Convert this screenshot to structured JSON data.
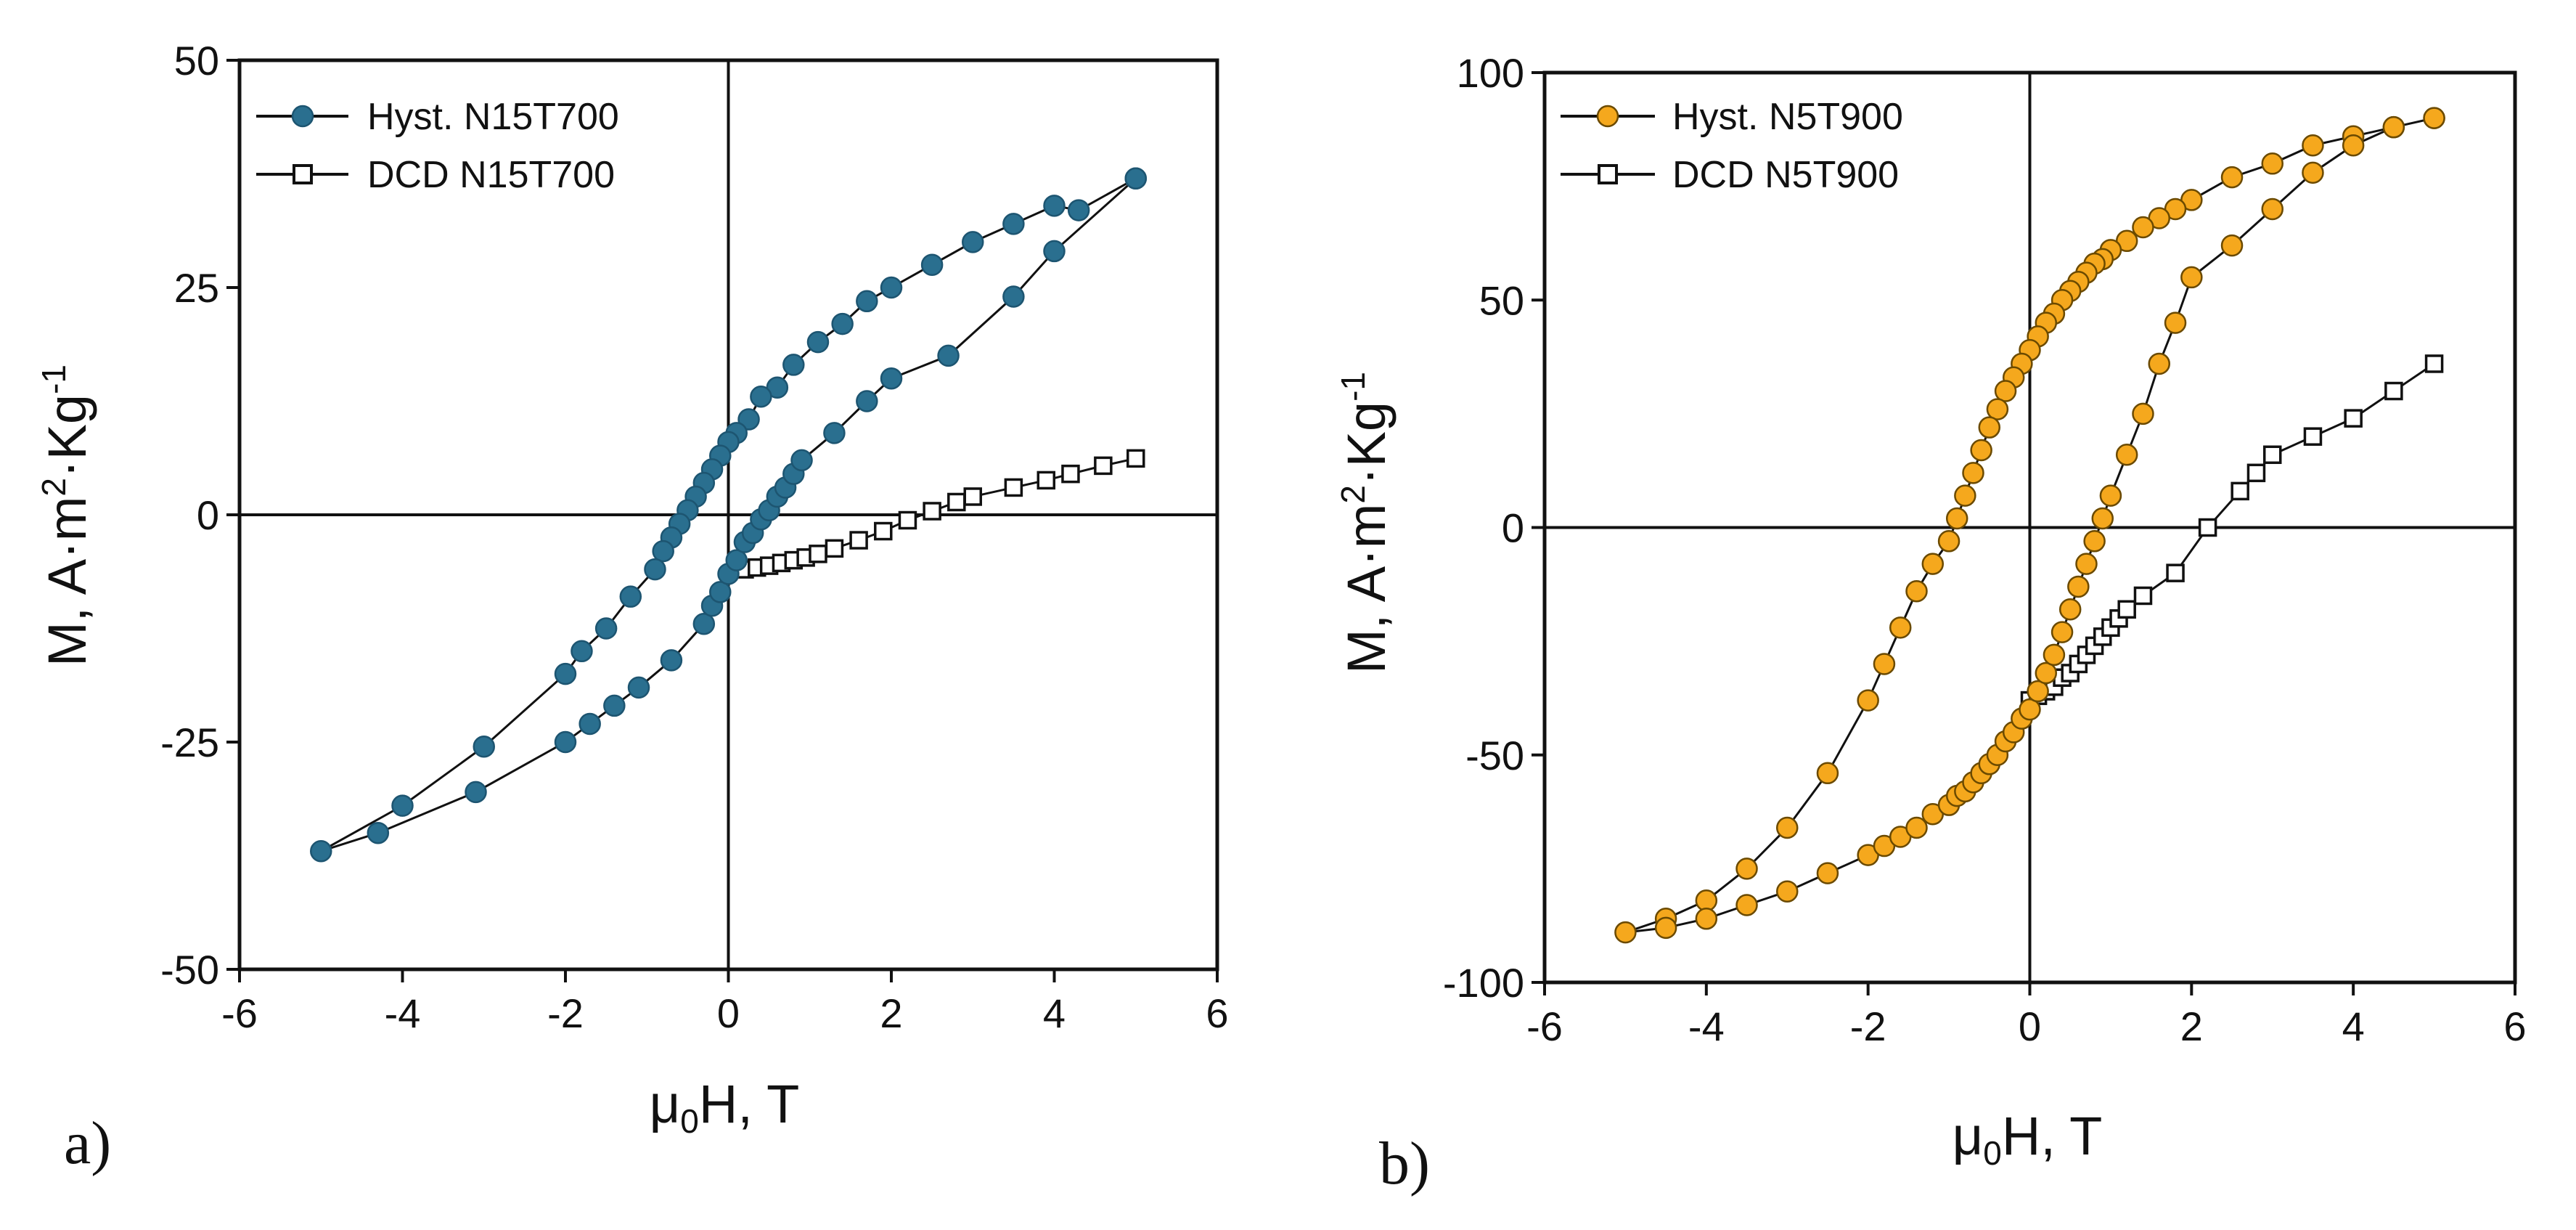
{
  "chart_data": [
    {
      "type": "line",
      "panel_label": "a)",
      "xlabel": {
        "main": "μ",
        "sub": "0",
        "rest": "H, T"
      },
      "ylabel": {
        "text": "M, A·m",
        "sup1": "2",
        "mid": "·Kg",
        "sup2": "-1"
      },
      "xlim": [
        -6,
        6
      ],
      "ylim": [
        -50,
        50
      ],
      "xticks": [
        -6,
        -4,
        -2,
        0,
        2,
        4,
        6
      ],
      "yticks": [
        -50,
        -25,
        0,
        25,
        50
      ],
      "legend": {
        "position": "top-left"
      },
      "colors": {
        "hyst": "#2a6f8f",
        "hyst_edge": "#1d5571",
        "line": "#111111"
      },
      "series": [
        {
          "name": "Hyst. N15T700",
          "marker": "filled-circle",
          "x": [
            5,
            4.3,
            4.0,
            3.5,
            3.0,
            2.5,
            2.0,
            1.7,
            1.4,
            1.1,
            0.8,
            0.6,
            0.4,
            0.25,
            0.1,
            0.0,
            -0.1,
            -0.2,
            -0.3,
            -0.4,
            -0.5,
            -0.6,
            -0.7,
            -0.8,
            -0.9,
            -1.2,
            -1.5,
            -1.8,
            -2.0,
            -3.0,
            -4.0,
            -5.0,
            -4.3,
            -3.1,
            -2.0,
            -1.7,
            -1.4,
            -1.1,
            -0.7,
            -0.3,
            -0.2,
            -0.1,
            0.0,
            0.1,
            0.2,
            0.3,
            0.4,
            0.5,
            0.6,
            0.7,
            0.8,
            0.9,
            1.3,
            1.7,
            2.0,
            2.7,
            3.5,
            4.0,
            5.0
          ],
          "y": [
            37,
            33.5,
            34,
            32,
            30,
            27.5,
            25,
            23.5,
            21,
            19,
            16.5,
            14,
            13,
            10.5,
            9,
            8,
            6.5,
            5,
            3.5,
            2,
            0.5,
            -1,
            -2.5,
            -4,
            -6,
            -9,
            -12.5,
            -15,
            -17.5,
            -25.5,
            -32,
            -37,
            -35,
            -30.5,
            -25,
            -23,
            -21,
            -19,
            -16,
            -12,
            -10,
            -8.5,
            -6.5,
            -5,
            -3,
            -2,
            -0.5,
            0.5,
            2,
            3,
            4.5,
            6,
            9,
            12.5,
            15,
            17.5,
            24,
            29,
            37
          ]
        },
        {
          "name": "DCD N15T700",
          "marker": "open-square",
          "x": [
            0.2,
            0.35,
            0.5,
            0.65,
            0.8,
            0.95,
            1.1,
            1.3,
            1.6,
            1.9,
            2.2,
            2.5,
            2.8,
            3.0,
            3.5,
            3.9,
            4.2,
            4.6,
            5.0
          ],
          "y": [
            -6,
            -5.8,
            -5.6,
            -5.3,
            -5,
            -4.7,
            -4.3,
            -3.7,
            -2.8,
            -1.8,
            -0.6,
            0.4,
            1.4,
            2,
            3,
            3.8,
            4.5,
            5.4,
            6.2
          ]
        }
      ]
    },
    {
      "type": "line",
      "panel_label": "b)",
      "xlabel": {
        "main": "μ",
        "sub": "0",
        "rest": "H, T"
      },
      "ylabel": {
        "text": "M, A·m",
        "sup1": "2",
        "mid": "·Kg",
        "sup2": "-1"
      },
      "xlim": [
        -6,
        6
      ],
      "ylim": [
        -100,
        100
      ],
      "xticks": [
        -6,
        -4,
        -2,
        0,
        2,
        4,
        6
      ],
      "yticks": [
        -100,
        -50,
        0,
        50,
        100
      ],
      "legend": {
        "position": "top-left"
      },
      "colors": {
        "hyst": "#f5a81d",
        "hyst_edge": "#6b4a00",
        "line": "#111111"
      },
      "series": [
        {
          "name": "Hyst. N5T900",
          "marker": "filled-circle",
          "x": [
            5,
            4.5,
            4.0,
            3.5,
            3.0,
            2.5,
            2.0,
            1.8,
            1.6,
            1.4,
            1.2,
            1.0,
            0.9,
            0.8,
            0.7,
            0.6,
            0.5,
            0.4,
            0.3,
            0.2,
            0.1,
            0.0,
            -0.1,
            -0.2,
            -0.3,
            -0.4,
            -0.5,
            -0.6,
            -0.7,
            -0.8,
            -0.9,
            -1.0,
            -1.2,
            -1.4,
            -1.6,
            -1.8,
            -2.0,
            -2.5,
            -3.0,
            -3.5,
            -4.0,
            -4.5,
            -5.0,
            -4.5,
            -4.0,
            -3.5,
            -3.0,
            -2.5,
            -2.0,
            -1.8,
            -1.6,
            -1.4,
            -1.2,
            -1.0,
            -0.9,
            -0.8,
            -0.7,
            -0.6,
            -0.5,
            -0.4,
            -0.3,
            -0.2,
            -0.1,
            0.0,
            0.1,
            0.2,
            0.3,
            0.4,
            0.5,
            0.6,
            0.7,
            0.8,
            0.9,
            1.0,
            1.2,
            1.4,
            1.6,
            1.8,
            2.0,
            2.5,
            3.0,
            3.5,
            4.0,
            4.5,
            5.0
          ],
          "y": [
            90,
            88,
            86,
            84,
            80,
            77,
            72,
            70,
            68,
            66,
            63,
            61,
            59,
            58,
            56,
            54,
            52,
            50,
            47,
            45,
            42,
            39,
            36,
            33,
            30,
            26,
            22,
            17,
            12,
            7,
            2,
            -3,
            -8,
            -14,
            -22,
            -30,
            -38,
            -54,
            -66,
            -75,
            -82,
            -86,
            -89,
            -88,
            -86,
            -83,
            -80,
            -76,
            -72,
            -70,
            -68,
            -66,
            -63,
            -61,
            -59,
            -58,
            -56,
            -54,
            -52,
            -50,
            -47,
            -45,
            -42,
            -40,
            -36,
            -32,
            -28,
            -23,
            -18,
            -13,
            -8,
            -3,
            2,
            7,
            16,
            25,
            36,
            45,
            55,
            62,
            70,
            78,
            84,
            88,
            90
          ]
        },
        {
          "name": "DCD N5T900",
          "marker": "open-square",
          "x": [
            0.0,
            0.1,
            0.2,
            0.3,
            0.4,
            0.5,
            0.6,
            0.7,
            0.8,
            0.9,
            1.0,
            1.1,
            1.2,
            1.4,
            1.8,
            2.2,
            2.6,
            2.8,
            3.0,
            3.5,
            4.0,
            4.5,
            5.0
          ],
          "y": [
            -38,
            -37,
            -36,
            -35,
            -33,
            -32,
            -30,
            -28,
            -26,
            -24,
            -22,
            -20,
            -18,
            -15,
            -10,
            0,
            8,
            12,
            16,
            20,
            24,
            30,
            36
          ]
        }
      ]
    }
  ]
}
